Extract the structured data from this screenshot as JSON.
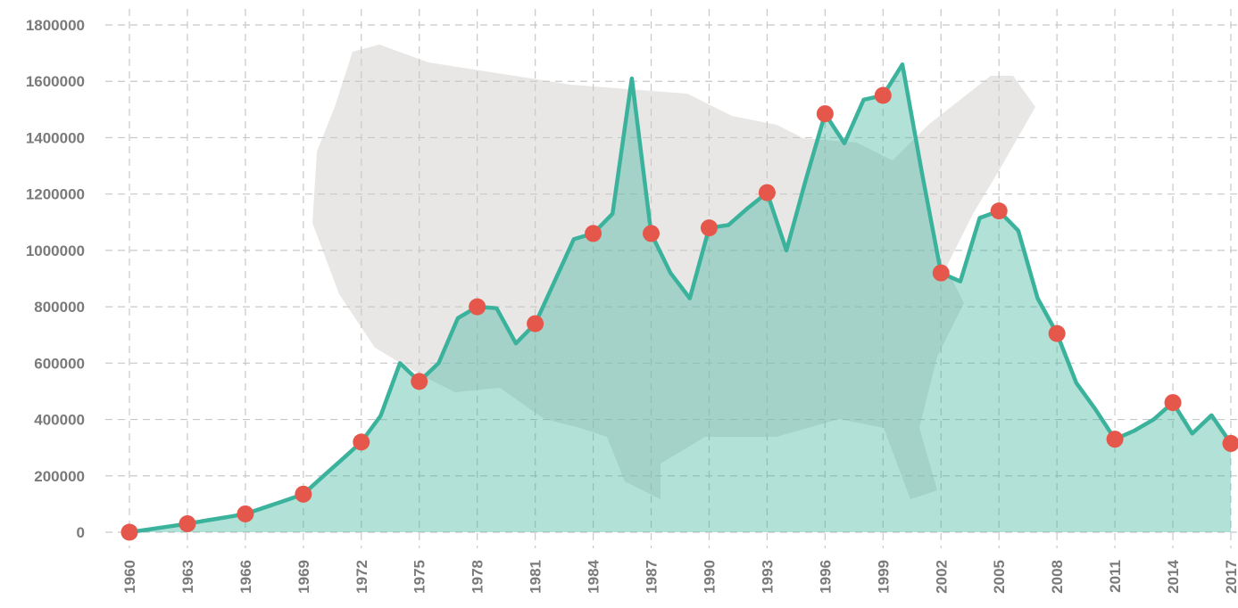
{
  "chart_data": {
    "type": "area",
    "x": [
      1960,
      1961,
      1962,
      1963,
      1964,
      1965,
      1966,
      1967,
      1968,
      1969,
      1970,
      1971,
      1972,
      1973,
      1974,
      1975,
      1976,
      1977,
      1978,
      1979,
      1980,
      1981,
      1982,
      1983,
      1984,
      1985,
      1986,
      1987,
      1988,
      1989,
      1990,
      1991,
      1992,
      1993,
      1994,
      1995,
      1996,
      1997,
      1998,
      1999,
      2000,
      2001,
      2002,
      2003,
      2004,
      2005,
      2006,
      2007,
      2008,
      2009,
      2010,
      2011,
      2012,
      2013,
      2014,
      2015,
      2016,
      2017
    ],
    "series": [
      {
        "color": "#3bb39c",
        "marker_color": "#e5574a",
        "values": [
          0,
          10000,
          20000,
          30000,
          42000,
          53000,
          65000,
          88000,
          111000,
          135000,
          197000,
          258000,
          320000,
          413000,
          600000,
          535000,
          600000,
          760000,
          800000,
          795000,
          670000,
          740000,
          890000,
          1040000,
          1060000,
          1130000,
          1610000,
          1060000,
          920000,
          830000,
          1080000,
          1090000,
          1150000,
          1205000,
          1000000,
          1250000,
          1485000,
          1380000,
          1535000,
          1550000,
          1660000,
          1280000,
          920000,
          890000,
          1115000,
          1140000,
          1070000,
          830000,
          705000,
          530000,
          435000,
          330000,
          360000,
          400000,
          460000,
          350000,
          415000,
          315000
        ]
      }
    ],
    "xlim": [
      1960,
      2017
    ],
    "xticks": [
      1960,
      1963,
      1966,
      1969,
      1972,
      1975,
      1978,
      1981,
      1984,
      1987,
      1990,
      1993,
      1996,
      1999,
      2002,
      2005,
      2008,
      2011,
      2014,
      2017
    ],
    "ylim": [
      0,
      1800000
    ],
    "yticks": [
      0,
      200000,
      400000,
      600000,
      800000,
      1000000,
      1200000,
      1400000,
      1600000,
      1800000
    ],
    "grid": true
  }
}
